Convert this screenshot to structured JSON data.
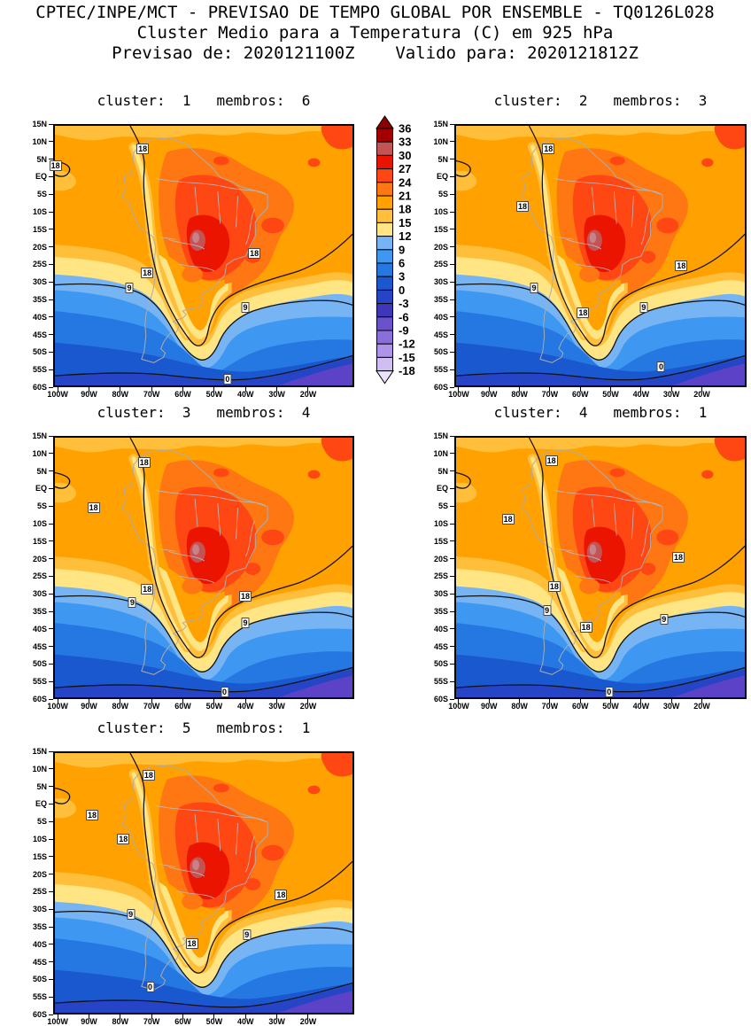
{
  "header": {
    "line1": "CPTEC/INPE/MCT - PREVISAO DE TEMPO GLOBAL POR ENSEMBLE - TQ0126L028",
    "line2": "Cluster Medio para a Temperatura (C) em 925 hPa",
    "line3": "Previsao de: 2020121100Z    Valido para: 2020121812Z"
  },
  "chart_data": {
    "type": "heatmap",
    "variant": "filled-contour-temperature-maps",
    "field": "Temperatura (C) em 925 hPa",
    "model": "TQ0126L028",
    "forecast_init": "2020121100Z",
    "forecast_valid": "2020121812Z",
    "region": {
      "lon_ticks": [
        "100W",
        "90W",
        "80W",
        "70W",
        "60W",
        "50W",
        "40W",
        "30W",
        "20W"
      ],
      "lat_ticks": [
        "15N",
        "10N",
        "5N",
        "EQ",
        "5S",
        "10S",
        "15S",
        "20S",
        "25S",
        "30S",
        "35S",
        "40S",
        "45S",
        "50S",
        "55S",
        "60S"
      ]
    },
    "colorbar": {
      "levels": [
        36,
        33,
        30,
        27,
        24,
        21,
        18,
        15,
        12,
        9,
        6,
        3,
        0,
        -3,
        -6,
        -9,
        -12,
        -15,
        -18
      ],
      "cell_colors": [
        "#A50000",
        "#C45353",
        "#E81400",
        "#FF4713",
        "#FF7712",
        "#FFA101",
        "#FFBF3B",
        "#FFE584",
        "#76B4F4",
        "#3E97F0",
        "#2578E2",
        "#1A58D0",
        "#2644C6",
        "#3E38B8",
        "#6A52CC",
        "#8A6FDA",
        "#AE94E8",
        "#CFBEF2"
      ],
      "above_color": "#8B0000",
      "below_color": "#E9E2FA"
    },
    "contour_levels_labeled": [
      18,
      9,
      0
    ],
    "panels": [
      {
        "cluster": "1",
        "membros": "6",
        "title": "cluster:  1   membros:  6",
        "labels": [
          {
            "t": "18",
            "x": 0.295,
            "y": 0.09
          },
          {
            "t": "18",
            "x": 0.002,
            "y": 0.155
          },
          {
            "t": "18",
            "x": 0.31,
            "y": 0.565
          },
          {
            "t": "18",
            "x": 0.67,
            "y": 0.49
          },
          {
            "t": "9",
            "x": 0.25,
            "y": 0.625
          },
          {
            "t": "9",
            "x": 0.64,
            "y": 0.7
          },
          {
            "t": "0",
            "x": 0.58,
            "y": 0.975
          }
        ]
      },
      {
        "cluster": "2",
        "membros": "3",
        "title": "cluster:  2   membros:  3",
        "labels": [
          {
            "t": "18",
            "x": 0.32,
            "y": 0.09
          },
          {
            "t": "18",
            "x": 0.23,
            "y": 0.31
          },
          {
            "t": "18",
            "x": 0.78,
            "y": 0.54
          },
          {
            "t": "9",
            "x": 0.27,
            "y": 0.625
          },
          {
            "t": "18",
            "x": 0.44,
            "y": 0.72
          },
          {
            "t": "9",
            "x": 0.65,
            "y": 0.7
          },
          {
            "t": "0",
            "x": 0.71,
            "y": 0.93
          }
        ]
      },
      {
        "cluster": "3",
        "membros": "4",
        "title": "cluster:  3   membros:  4",
        "labels": [
          {
            "t": "18",
            "x": 0.3,
            "y": 0.095
          },
          {
            "t": "18",
            "x": 0.13,
            "y": 0.27
          },
          {
            "t": "18",
            "x": 0.31,
            "y": 0.585
          },
          {
            "t": "18",
            "x": 0.64,
            "y": 0.61
          },
          {
            "t": "9",
            "x": 0.26,
            "y": 0.635
          },
          {
            "t": "9",
            "x": 0.64,
            "y": 0.715
          },
          {
            "t": "0",
            "x": 0.57,
            "y": 0.98
          }
        ]
      },
      {
        "cluster": "4",
        "membros": "1",
        "title": "cluster:  4   membros:  1",
        "labels": [
          {
            "t": "18",
            "x": 0.33,
            "y": 0.09
          },
          {
            "t": "18",
            "x": 0.18,
            "y": 0.315
          },
          {
            "t": "18",
            "x": 0.34,
            "y": 0.575
          },
          {
            "t": "18",
            "x": 0.77,
            "y": 0.46
          },
          {
            "t": "9",
            "x": 0.315,
            "y": 0.665
          },
          {
            "t": "9",
            "x": 0.72,
            "y": 0.7
          },
          {
            "t": "18",
            "x": 0.45,
            "y": 0.73
          },
          {
            "t": "0",
            "x": 0.53,
            "y": 0.98
          }
        ]
      },
      {
        "cluster": "5",
        "membros": "1",
        "title": "cluster:  5   membros:  1",
        "labels": [
          {
            "t": "18",
            "x": 0.315,
            "y": 0.085
          },
          {
            "t": "18",
            "x": 0.125,
            "y": 0.24
          },
          {
            "t": "18",
            "x": 0.23,
            "y": 0.33
          },
          {
            "t": "18",
            "x": 0.76,
            "y": 0.545
          },
          {
            "t": "9",
            "x": 0.255,
            "y": 0.62
          },
          {
            "t": "9",
            "x": 0.645,
            "y": 0.7
          },
          {
            "t": "18",
            "x": 0.46,
            "y": 0.735
          },
          {
            "t": "0",
            "x": 0.32,
            "y": 0.9
          }
        ]
      }
    ]
  }
}
